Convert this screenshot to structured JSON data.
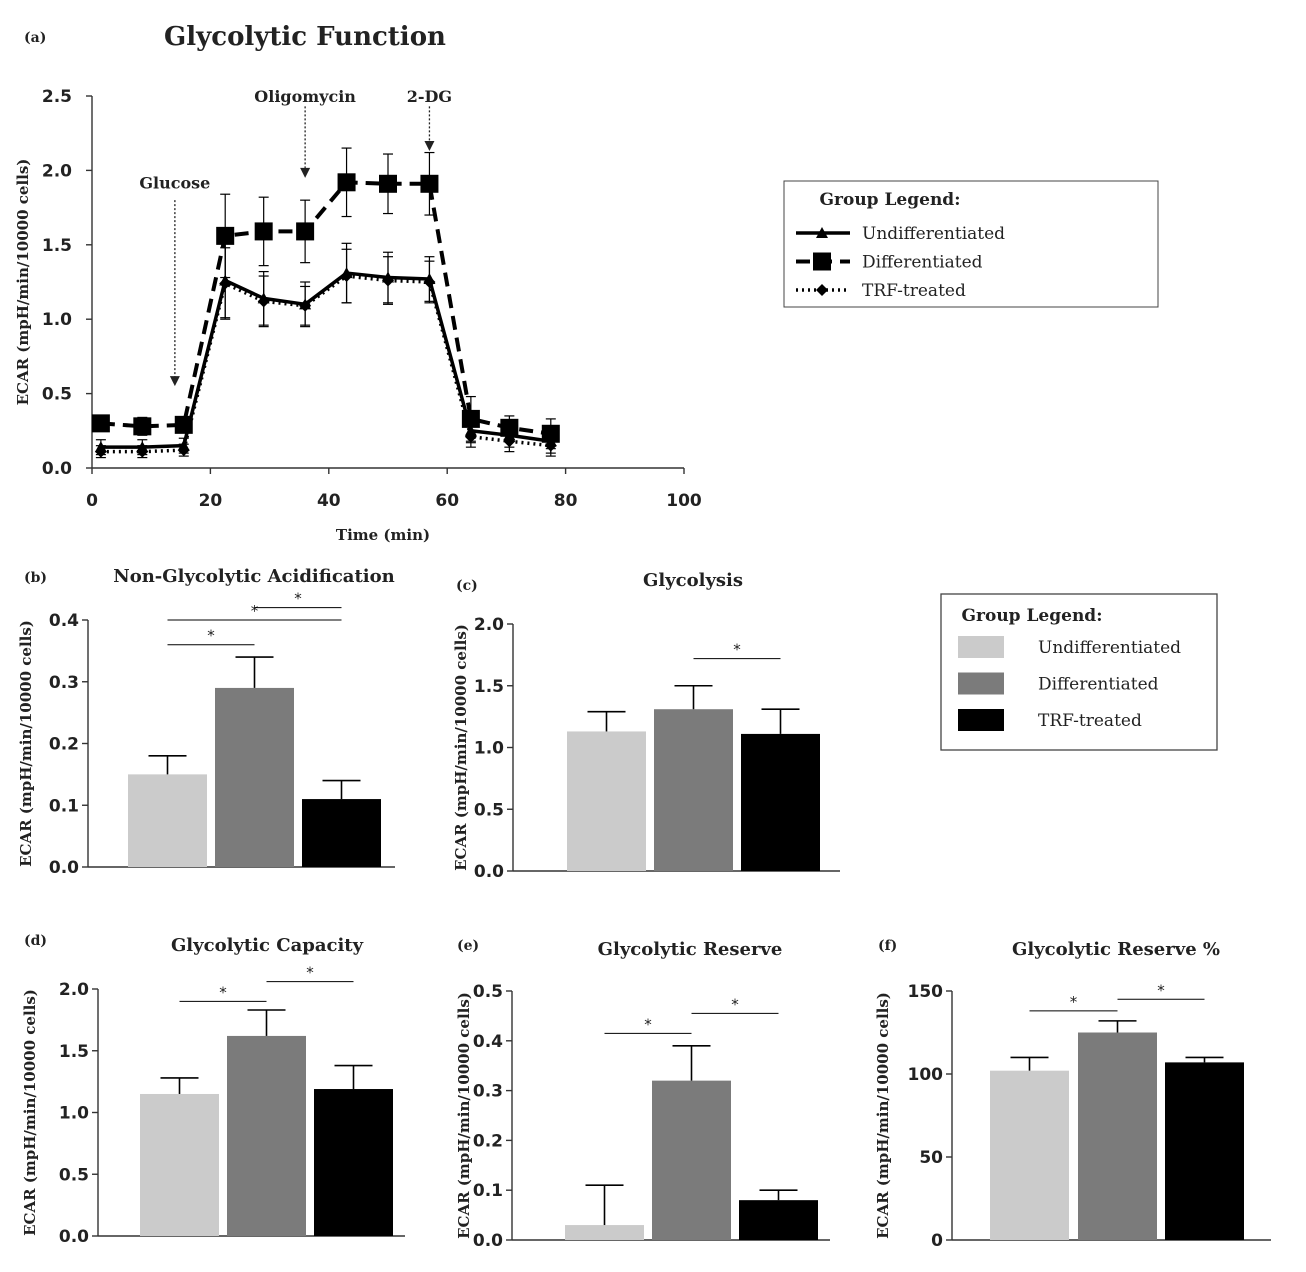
{
  "chart_data": [
    {
      "id": "a",
      "type": "line",
      "panel_label": "(a)",
      "title": "Glycolytic Function",
      "xlabel": "Time (min)",
      "ylabel": "ECAR (mpH/min/10000 cells)",
      "xlim": [
        0,
        100
      ],
      "ylim": [
        0,
        2.5
      ],
      "xticks": [
        "0",
        "20",
        "40",
        "60",
        "80",
        "100"
      ],
      "yticks": [
        "0.0",
        "0.5",
        "1.0",
        "1.5",
        "2.0",
        "2.5"
      ],
      "x": [
        1.5,
        8.5,
        15.5,
        22.5,
        29,
        36,
        43,
        50,
        57,
        64,
        70.5,
        77.5
      ],
      "series": [
        {
          "name": "Undifferentiated",
          "style": "solid-triangle",
          "values": [
            0.14,
            0.14,
            0.15,
            1.26,
            1.14,
            1.1,
            1.31,
            1.28,
            1.27,
            0.25,
            0.22,
            0.18
          ],
          "errors": [
            0.05,
            0.05,
            0.05,
            0.25,
            0.18,
            0.15,
            0.2,
            0.17,
            0.15,
            0.08,
            0.08,
            0.08
          ]
        },
        {
          "name": "Differentiated",
          "style": "dashed-square",
          "values": [
            0.3,
            0.28,
            0.29,
            1.56,
            1.59,
            1.59,
            1.92,
            1.91,
            1.91,
            0.33,
            0.27,
            0.23
          ],
          "errors": [
            0.05,
            0.06,
            0.05,
            0.28,
            0.23,
            0.21,
            0.23,
            0.2,
            0.21,
            0.15,
            0.08,
            0.1
          ]
        },
        {
          "name": "TRF-treated",
          "style": "dotted-diamond",
          "values": [
            0.11,
            0.11,
            0.12,
            1.24,
            1.12,
            1.09,
            1.29,
            1.26,
            1.25,
            0.21,
            0.18,
            0.15
          ],
          "errors": [
            0.04,
            0.04,
            0.04,
            0.24,
            0.17,
            0.13,
            0.18,
            0.16,
            0.14,
            0.07,
            0.07,
            0.07
          ]
        }
      ],
      "annotations": [
        {
          "text": "Glucose",
          "x": 14,
          "y_top": 1.8,
          "y_tip": 0.55,
          "label_y": 1.92
        },
        {
          "text": "Oligomycin",
          "x": 36,
          "y_top": 2.43,
          "y_tip": 1.95,
          "label_y": 2.5
        },
        {
          "text": "2-DG",
          "x": 57,
          "y_top": 2.43,
          "y_tip": 2.13,
          "label_y": 2.5
        }
      ],
      "legend": {
        "title": "Group Legend:",
        "entries": [
          "Undifferentiated",
          "Differentiated",
          "TRF-treated"
        ]
      }
    },
    {
      "id": "b",
      "type": "bar",
      "panel_label": "(b)",
      "title": "Non-Glycolytic Acidification",
      "ylabel": "ECAR (mpH/min/10000 cells)",
      "ylim": [
        0,
        0.4
      ],
      "yticks": [
        "0.0",
        "0.1",
        "0.2",
        "0.3",
        "0.4"
      ],
      "categories": [
        "Undifferentiated",
        "Differentiated",
        "TRF-treated"
      ],
      "values": [
        0.15,
        0.29,
        0.11
      ],
      "errors": [
        0.03,
        0.05,
        0.03
      ],
      "significance": [
        {
          "from": 0,
          "to": 1,
          "y": 0.36,
          "label": "*"
        },
        {
          "from": 0,
          "to": 2,
          "y": 0.4,
          "label": "*"
        },
        {
          "from": 1,
          "to": 2,
          "y": 0.42,
          "label": "*"
        }
      ]
    },
    {
      "id": "c",
      "type": "bar",
      "panel_label": "(c)",
      "title": "Glycolysis",
      "ylabel": "ECAR (mpH/min/10000 cells)",
      "ylim": [
        0,
        2.0
      ],
      "yticks": [
        "0.0",
        "0.5",
        "1.0",
        "1.5",
        "2.0"
      ],
      "categories": [
        "Undifferentiated",
        "Differentiated",
        "TRF-treated"
      ],
      "values": [
        1.13,
        1.31,
        1.11
      ],
      "errors": [
        0.16,
        0.19,
        0.2
      ],
      "significance": [
        {
          "from": 1,
          "to": 2,
          "y": 1.72,
          "label": "*"
        }
      ],
      "legend": {
        "title": "Group Legend:",
        "entries": [
          "Undifferentiated",
          "Differentiated",
          "TRF-treated"
        ]
      }
    },
    {
      "id": "d",
      "type": "bar",
      "panel_label": "(d)",
      "title": "Glycolytic Capacity",
      "ylabel": "ECAR (mpH/min/10000 cells)",
      "ylim": [
        0,
        2.0
      ],
      "yticks": [
        "0.0",
        "0.5",
        "1.0",
        "1.5",
        "2.0"
      ],
      "categories": [
        "Undifferentiated",
        "Differentiated",
        "TRF-treated"
      ],
      "values": [
        1.15,
        1.62,
        1.19
      ],
      "errors": [
        0.13,
        0.21,
        0.19
      ],
      "significance": [
        {
          "from": 0,
          "to": 1,
          "y": 1.9,
          "label": "*"
        },
        {
          "from": 1,
          "to": 2,
          "y": 2.06,
          "label": "*"
        }
      ]
    },
    {
      "id": "e",
      "type": "bar",
      "panel_label": "(e)",
      "title": "Glycolytic Reserve",
      "ylabel": "ECAR (mpH/min/10000 cells)",
      "ylim": [
        0,
        0.5
      ],
      "yticks": [
        "0.0",
        "0.1",
        "0.2",
        "0.3",
        "0.4",
        "0.5"
      ],
      "categories": [
        "Undifferentiated",
        "Differentiated",
        "TRF-treated"
      ],
      "values": [
        0.03,
        0.32,
        0.08
      ],
      "errors": [
        0.08,
        0.07,
        0.02
      ],
      "significance": [
        {
          "from": 0,
          "to": 1,
          "y": 0.415,
          "label": "*"
        },
        {
          "from": 1,
          "to": 2,
          "y": 0.455,
          "label": "*"
        }
      ]
    },
    {
      "id": "f",
      "type": "bar",
      "panel_label": "(f)",
      "title": "Glycolytic Reserve %",
      "ylabel": "ECAR (mpH/min/10000 cells)",
      "ylim": [
        0,
        150
      ],
      "yticks": [
        "0",
        "50",
        "100",
        "150"
      ],
      "categories": [
        "Undifferentiated",
        "Differentiated",
        "TRF-treated"
      ],
      "values": [
        102,
        125,
        107
      ],
      "errors": [
        8,
        7,
        3
      ],
      "significance": [
        {
          "from": 0,
          "to": 1,
          "y": 138,
          "label": "*"
        },
        {
          "from": 1,
          "to": 2,
          "y": 145,
          "label": "*"
        }
      ]
    }
  ],
  "colors": {
    "undifferentiated": "#cbcbcb",
    "differentiated": "#7b7b7b",
    "trf_treated": "#000000",
    "axis": "#333333"
  }
}
